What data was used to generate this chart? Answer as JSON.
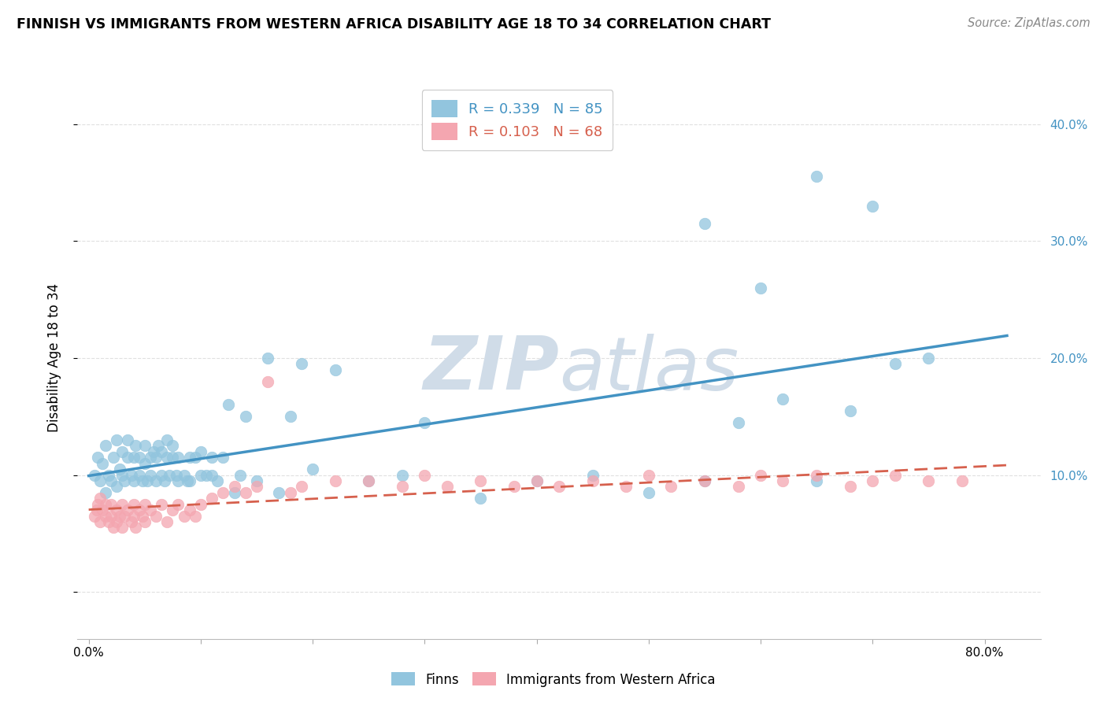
{
  "title": "FINNISH VS IMMIGRANTS FROM WESTERN AFRICA DISABILITY AGE 18 TO 34 CORRELATION CHART",
  "source": "Source: ZipAtlas.com",
  "ylabel": "Disability Age 18 to 34",
  "legend_finns": "Finns",
  "legend_immigrants": "Immigrants from Western Africa",
  "r_finns": 0.339,
  "n_finns": 85,
  "r_immigrants": 0.103,
  "n_immigrants": 68,
  "finns_color": "#92c5de",
  "immigrants_color": "#f4a6b0",
  "finns_line_color": "#4393c3",
  "immigrants_line_color": "#d6604d",
  "watermark_color": "#d0dce8",
  "grid_color": "#e0e0e0",
  "ylim_min": -0.04,
  "ylim_max": 0.44,
  "xlim_min": -0.01,
  "xlim_max": 0.85,
  "finns_x": [
    0.005,
    0.008,
    0.01,
    0.012,
    0.015,
    0.015,
    0.018,
    0.02,
    0.022,
    0.025,
    0.025,
    0.028,
    0.03,
    0.03,
    0.032,
    0.035,
    0.035,
    0.038,
    0.04,
    0.04,
    0.042,
    0.045,
    0.045,
    0.048,
    0.05,
    0.05,
    0.052,
    0.055,
    0.055,
    0.058,
    0.06,
    0.06,
    0.062,
    0.065,
    0.065,
    0.068,
    0.07,
    0.07,
    0.072,
    0.075,
    0.075,
    0.078,
    0.08,
    0.08,
    0.085,
    0.088,
    0.09,
    0.09,
    0.095,
    0.1,
    0.1,
    0.105,
    0.11,
    0.11,
    0.115,
    0.12,
    0.125,
    0.13,
    0.135,
    0.14,
    0.15,
    0.16,
    0.17,
    0.18,
    0.19,
    0.2,
    0.22,
    0.25,
    0.28,
    0.3,
    0.35,
    0.4,
    0.45,
    0.5,
    0.55,
    0.58,
    0.62,
    0.65,
    0.68,
    0.72,
    0.55,
    0.6,
    0.65,
    0.7,
    0.75
  ],
  "finns_y": [
    0.1,
    0.115,
    0.095,
    0.11,
    0.085,
    0.125,
    0.1,
    0.095,
    0.115,
    0.09,
    0.13,
    0.105,
    0.1,
    0.12,
    0.095,
    0.115,
    0.13,
    0.1,
    0.095,
    0.115,
    0.125,
    0.1,
    0.115,
    0.095,
    0.11,
    0.125,
    0.095,
    0.115,
    0.1,
    0.12,
    0.095,
    0.115,
    0.125,
    0.1,
    0.12,
    0.095,
    0.115,
    0.13,
    0.1,
    0.115,
    0.125,
    0.1,
    0.095,
    0.115,
    0.1,
    0.095,
    0.115,
    0.095,
    0.115,
    0.1,
    0.12,
    0.1,
    0.115,
    0.1,
    0.095,
    0.115,
    0.16,
    0.085,
    0.1,
    0.15,
    0.095,
    0.2,
    0.085,
    0.15,
    0.195,
    0.105,
    0.19,
    0.095,
    0.1,
    0.145,
    0.08,
    0.095,
    0.1,
    0.085,
    0.095,
    0.145,
    0.165,
    0.095,
    0.155,
    0.195,
    0.315,
    0.26,
    0.355,
    0.33,
    0.2
  ],
  "immigrants_x": [
    0.005,
    0.007,
    0.008,
    0.01,
    0.01,
    0.012,
    0.015,
    0.015,
    0.018,
    0.02,
    0.02,
    0.022,
    0.025,
    0.025,
    0.028,
    0.03,
    0.03,
    0.032,
    0.035,
    0.038,
    0.04,
    0.04,
    0.042,
    0.045,
    0.048,
    0.05,
    0.05,
    0.055,
    0.06,
    0.065,
    0.07,
    0.075,
    0.08,
    0.085,
    0.09,
    0.095,
    0.1,
    0.11,
    0.12,
    0.13,
    0.14,
    0.15,
    0.16,
    0.18,
    0.19,
    0.22,
    0.25,
    0.28,
    0.3,
    0.32,
    0.35,
    0.38,
    0.4,
    0.42,
    0.45,
    0.48,
    0.5,
    0.52,
    0.55,
    0.58,
    0.6,
    0.62,
    0.65,
    0.68,
    0.7,
    0.72,
    0.75,
    0.78
  ],
  "immigrants_y": [
    0.065,
    0.07,
    0.075,
    0.06,
    0.08,
    0.07,
    0.065,
    0.075,
    0.06,
    0.075,
    0.065,
    0.055,
    0.07,
    0.06,
    0.065,
    0.075,
    0.055,
    0.065,
    0.07,
    0.06,
    0.075,
    0.065,
    0.055,
    0.07,
    0.065,
    0.06,
    0.075,
    0.07,
    0.065,
    0.075,
    0.06,
    0.07,
    0.075,
    0.065,
    0.07,
    0.065,
    0.075,
    0.08,
    0.085,
    0.09,
    0.085,
    0.09,
    0.18,
    0.085,
    0.09,
    0.095,
    0.095,
    0.09,
    0.1,
    0.09,
    0.095,
    0.09,
    0.095,
    0.09,
    0.095,
    0.09,
    0.1,
    0.09,
    0.095,
    0.09,
    0.1,
    0.095,
    0.1,
    0.09,
    0.095,
    0.1,
    0.095,
    0.095
  ]
}
